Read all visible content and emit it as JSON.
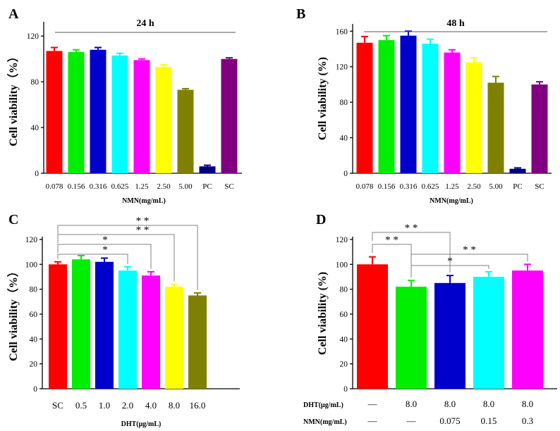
{
  "chart_data": [
    {
      "panel": "A",
      "type": "bar",
      "title": "24 h",
      "xlabel": "NMN(mg/mL)",
      "ylabel": "Cell viability（%）",
      "ylim": [
        0,
        130
      ],
      "yticks": [
        0,
        40,
        80,
        120
      ],
      "categories": [
        "0.078",
        "0.156",
        "0.316",
        "0.625",
        "1.25",
        "2.50",
        "5.00",
        "PC",
        "SC"
      ],
      "values": [
        107,
        106,
        108,
        103,
        99,
        93,
        73,
        6,
        100
      ],
      "errors": [
        3,
        2,
        2,
        2,
        1,
        2,
        1,
        1,
        1
      ],
      "colors": [
        "#ff0000",
        "#00ee00",
        "#0000cc",
        "#00ffff",
        "#ff00ff",
        "#ffff00",
        "#808000",
        "#000080",
        "#800080"
      ]
    },
    {
      "panel": "B",
      "type": "bar",
      "title": "48 h",
      "xlabel": "NMN(mg/mL)",
      "ylabel": "Cell viability (%)",
      "ylim": [
        0,
        165
      ],
      "yticks": [
        0,
        40,
        80,
        120,
        160
      ],
      "categories": [
        "0.078",
        "0.156",
        "0.316",
        "0.625",
        "1.25",
        "2.50",
        "5.00",
        "PC",
        "SC"
      ],
      "values": [
        147,
        150,
        155,
        146,
        136,
        125,
        102,
        5,
        100
      ],
      "errors": [
        7,
        5,
        5,
        5,
        3,
        5,
        7,
        1,
        3
      ],
      "colors": [
        "#ff0000",
        "#00ee00",
        "#0000cc",
        "#00ffff",
        "#ff00ff",
        "#ffff00",
        "#808000",
        "#000080",
        "#800080"
      ]
    },
    {
      "panel": "C",
      "type": "bar",
      "title": "",
      "xlabel": "DHT(μg/mL)",
      "ylabel": "Cell viability（%）",
      "ylim": [
        0,
        120
      ],
      "yticks": [
        0,
        20,
        40,
        60,
        80,
        100,
        120
      ],
      "categories": [
        "SC",
        "0.5",
        "1.0",
        "2.0",
        "4.0",
        "8.0",
        "16.0"
      ],
      "values": [
        100,
        104,
        102,
        95,
        91,
        82,
        75
      ],
      "errors": [
        2,
        3,
        3,
        3,
        3,
        2,
        2
      ],
      "colors": [
        "#ff0000",
        "#00ee00",
        "#0000cc",
        "#00ffff",
        "#ff00ff",
        "#ffff00",
        "#808000"
      ],
      "significance": [
        {
          "from": 0,
          "to": 3,
          "label": "*"
        },
        {
          "from": 0,
          "to": 4,
          "label": "*"
        },
        {
          "from": 0,
          "to": 5,
          "label": "* *"
        },
        {
          "from": 0,
          "to": 6,
          "label": "* *"
        }
      ]
    },
    {
      "panel": "D",
      "type": "bar",
      "title": "",
      "xlabel": "",
      "ylabel": "Cell viability (%)",
      "ylim": [
        0,
        120
      ],
      "yticks": [
        0,
        20,
        40,
        60,
        80,
        100,
        120
      ],
      "values": [
        100,
        82,
        85,
        90,
        95
      ],
      "errors": [
        6,
        5,
        6,
        4,
        5
      ],
      "colors": [
        "#ff0000",
        "#00ee00",
        "#0000cc",
        "#00ffff",
        "#ff00ff"
      ],
      "table_rows": [
        {
          "label": "DHT(μg/mL)",
          "cells": [
            "—",
            "8.0",
            "8.0",
            "8.0",
            "8.0"
          ]
        },
        {
          "label": "NMN(mg/mL)",
          "cells": [
            "—",
            "—",
            "0.075",
            "0.15",
            "0.3"
          ]
        }
      ],
      "significance": [
        {
          "from": 0,
          "to": 1,
          "label": "* *"
        },
        {
          "from": 0,
          "to": 2,
          "label": "* *"
        },
        {
          "from": 1,
          "to": 3,
          "label": "*"
        },
        {
          "from": 1,
          "to": 4,
          "label": "* *"
        }
      ]
    }
  ]
}
